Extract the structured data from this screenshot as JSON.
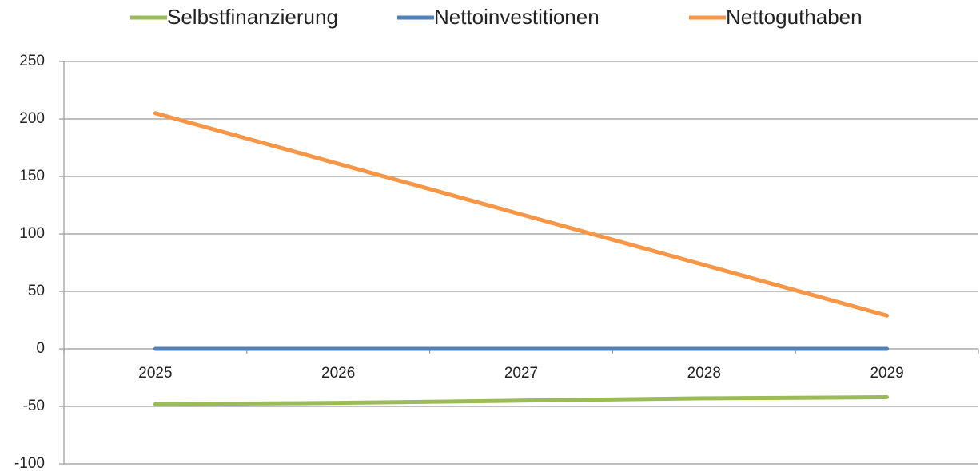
{
  "chart_data": {
    "type": "line",
    "categories": [
      "2025",
      "2026",
      "2027",
      "2028",
      "2029"
    ],
    "series": [
      {
        "name": "Selbstfinanzierung",
        "color": "#9bbb59",
        "values": [
          -48,
          -47,
          -45,
          -43,
          -42
        ]
      },
      {
        "name": "Nettoinvestitionen",
        "color": "#4f81bd",
        "values": [
          0,
          0,
          0,
          0,
          0
        ]
      },
      {
        "name": "Nettoguthaben",
        "color": "#f79646",
        "values": [
          205,
          161,
          117,
          73,
          29
        ]
      }
    ],
    "ylim": [
      -100,
      250
    ],
    "yticks": [
      -100,
      -50,
      0,
      50,
      100,
      150,
      200,
      250
    ],
    "grid": true,
    "legend": "top"
  }
}
